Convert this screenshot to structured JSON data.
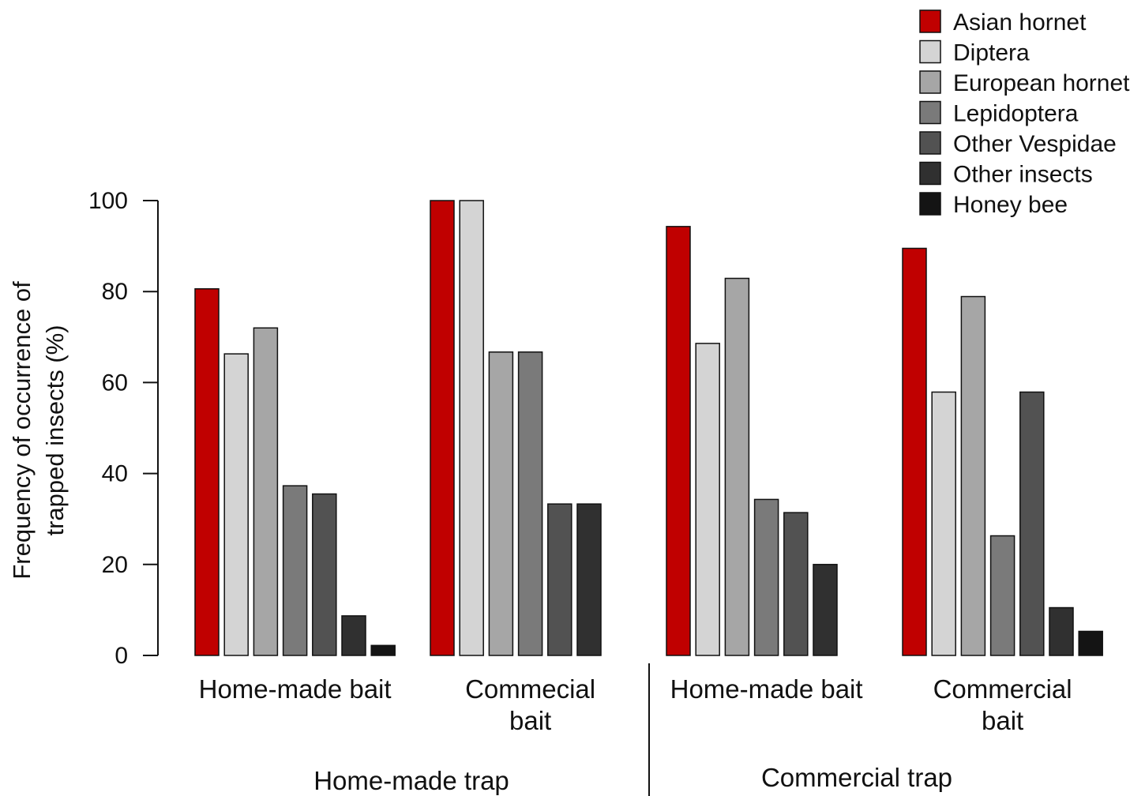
{
  "chart_data": {
    "type": "bar",
    "ylabel_line1": "Frequency of occurrence of",
    "ylabel_line2": "trapped insects (%)",
    "ylim": [
      0,
      100
    ],
    "yticks": [
      0,
      20,
      40,
      60,
      80,
      100
    ],
    "grid": false,
    "legend_position": "top-right",
    "groups": [
      {
        "label": "Home-made trap",
        "baits": [
          {
            "label_lines": [
              "Home-made bait"
            ],
            "values": [
              80.6,
              66.3,
              72.0,
              37.3,
              35.5,
              8.7,
              2.2
            ]
          },
          {
            "label_lines": [
              "Commecial",
              "bait"
            ],
            "values": [
              100,
              100,
              66.7,
              66.7,
              33.3,
              33.3,
              0
            ]
          }
        ]
      },
      {
        "label": "Commercial trap",
        "baits": [
          {
            "label_lines": [
              "Home-made bait"
            ],
            "values": [
              94.3,
              68.6,
              82.9,
              34.3,
              31.4,
              20.0,
              0
            ]
          },
          {
            "label_lines": [
              "Commercial",
              "bait"
            ],
            "values": [
              89.5,
              57.9,
              78.9,
              26.3,
              57.9,
              10.5,
              5.3
            ]
          }
        ]
      }
    ],
    "series": [
      {
        "name": "Asian hornet",
        "color": "#c00000"
      },
      {
        "name": "Diptera",
        "color": "#d4d4d4"
      },
      {
        "name": "European hornet",
        "color": "#a6a6a6"
      },
      {
        "name": "Lepidoptera",
        "color": "#7a7a7a"
      },
      {
        "name": "Other Vespidae",
        "color": "#525252"
      },
      {
        "name": "Other insects",
        "color": "#303030"
      },
      {
        "name": "Honey bee",
        "color": "#141414"
      }
    ]
  }
}
